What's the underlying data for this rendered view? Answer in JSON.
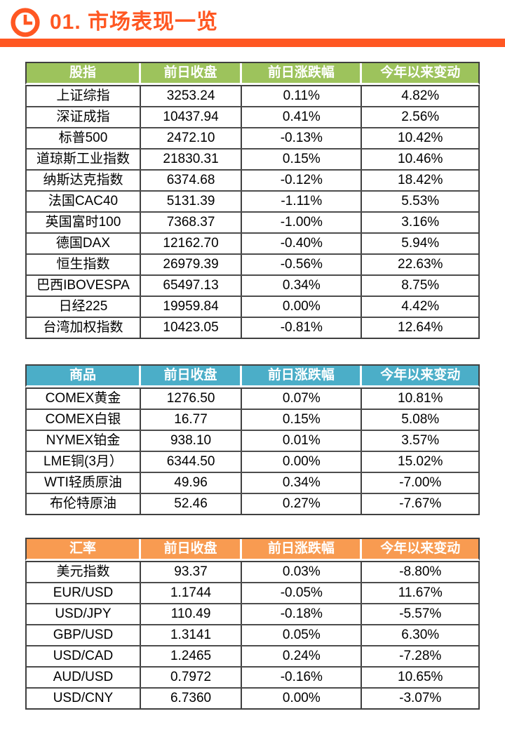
{
  "header": {
    "title": "01. 市场表现一览",
    "icon": "clock-icon",
    "accent_color": "#FF5722"
  },
  "tables": [
    {
      "id": "stock-indices",
      "header_color": "#9DC35C",
      "columns": [
        "股指",
        "前日收盘",
        "前日涨跌幅",
        "今年以来变动"
      ],
      "rows": [
        [
          "上证综指",
          "3253.24",
          "0.11%",
          "4.82%"
        ],
        [
          "深证成指",
          "10437.94",
          "0.41%",
          "2.56%"
        ],
        [
          "标普500",
          "2472.10",
          "-0.13%",
          "10.42%"
        ],
        [
          "道琼斯工业指数",
          "21830.31",
          "0.15%",
          "10.46%"
        ],
        [
          "纳斯达克指数",
          "6374.68",
          "-0.12%",
          "18.42%"
        ],
        [
          "法国CAC40",
          "5131.39",
          "-1.11%",
          "5.53%"
        ],
        [
          "英国富时100",
          "7368.37",
          "-1.00%",
          "3.16%"
        ],
        [
          "德国DAX",
          "12162.70",
          "-0.40%",
          "5.94%"
        ],
        [
          "恒生指数",
          "26979.39",
          "-0.56%",
          "22.63%"
        ],
        [
          "巴西IBOVESPA",
          "65497.13",
          "0.34%",
          "8.75%"
        ],
        [
          "日经225",
          "19959.84",
          "0.00%",
          "4.42%"
        ],
        [
          "台湾加权指数",
          "10423.05",
          "-0.81%",
          "12.64%"
        ]
      ]
    },
    {
      "id": "commodities",
      "header_color": "#4BAEC8",
      "columns": [
        "商品",
        "前日收盘",
        "前日涨跌幅",
        "今年以来变动"
      ],
      "rows": [
        [
          "COMEX黄金",
          "1276.50",
          "0.07%",
          "10.81%"
        ],
        [
          "COMEX白银",
          "16.77",
          "0.15%",
          "5.08%"
        ],
        [
          "NYMEX铂金",
          "938.10",
          "0.01%",
          "3.57%"
        ],
        [
          "LME铜(3月）",
          "6344.50",
          "0.00%",
          "15.02%"
        ],
        [
          "WTI轻质原油",
          "49.96",
          "0.34%",
          "-7.00%"
        ],
        [
          "布伦特原油",
          "52.46",
          "0.27%",
          "-7.67%"
        ]
      ]
    },
    {
      "id": "exchange-rates",
      "header_color": "#F89B51",
      "columns": [
        "汇率",
        "前日收盘",
        "前日涨跌幅",
        "今年以来变动"
      ],
      "rows": [
        [
          "美元指数",
          "93.37",
          "0.03%",
          "-8.80%"
        ],
        [
          "EUR/USD",
          "1.1744",
          "-0.05%",
          "11.67%"
        ],
        [
          "USD/JPY",
          "110.49",
          "-0.18%",
          "-5.57%"
        ],
        [
          "GBP/USD",
          "1.3141",
          "0.05%",
          "6.30%"
        ],
        [
          "USD/CAD",
          "1.2465",
          "0.24%",
          "-7.28%"
        ],
        [
          "AUD/USD",
          "0.7972",
          "-0.16%",
          "10.65%"
        ],
        [
          "USD/CNY",
          "6.7360",
          "0.00%",
          "-3.07%"
        ]
      ]
    }
  ]
}
